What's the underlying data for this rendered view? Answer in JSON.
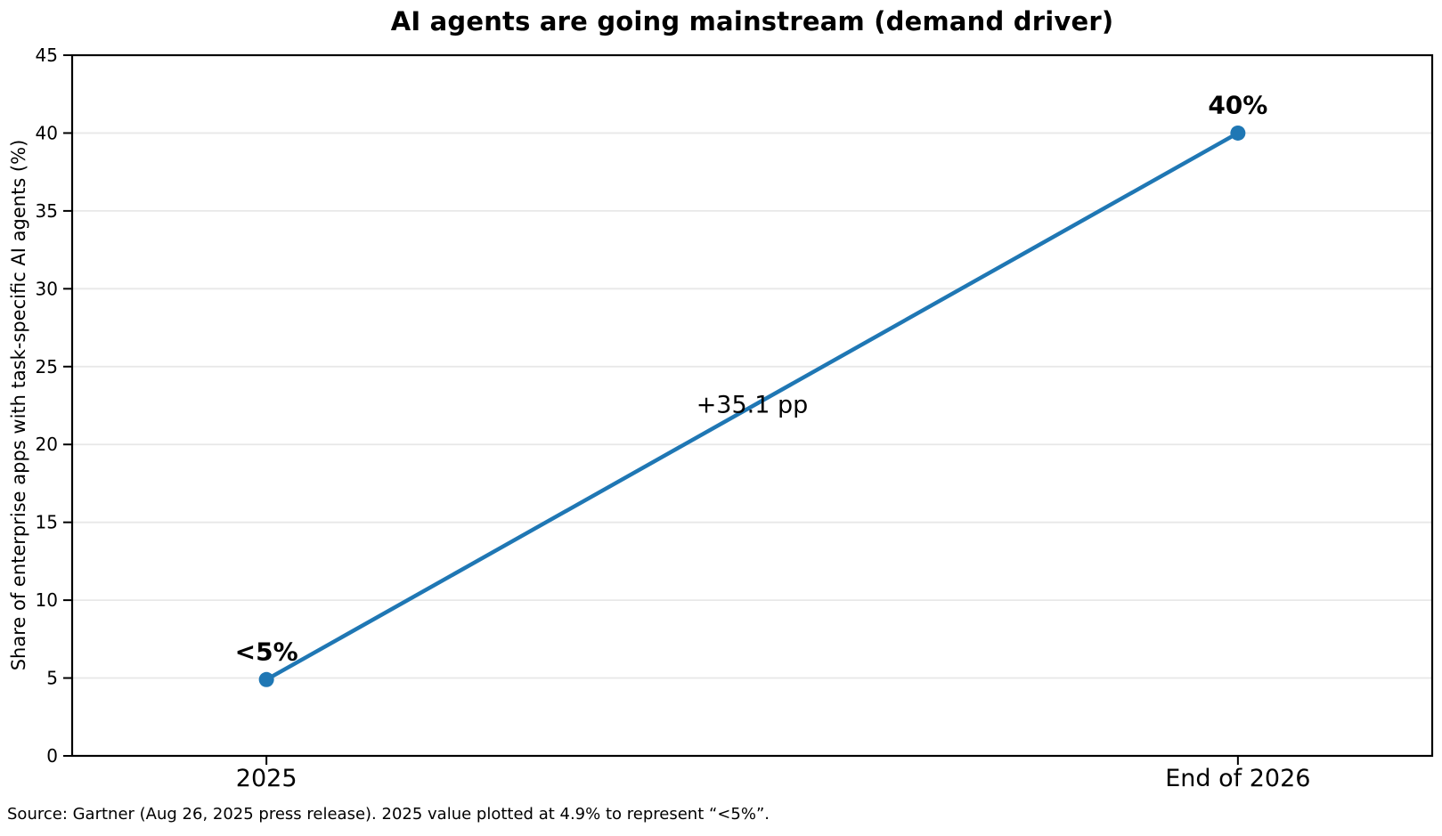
{
  "chart_data": {
    "type": "line",
    "title": "AI agents are going mainstream (demand driver)",
    "ylabel": "Share of enterprise apps with task-specific AI agents (%)",
    "xlabel": "",
    "categories": [
      "2025",
      "End of 2026"
    ],
    "series": [
      {
        "name": "Share of enterprise apps with task-specific AI agents",
        "values": [
          4.9,
          40
        ]
      }
    ],
    "point_labels": [
      "<5%",
      "40%"
    ],
    "midpoint_annotation": "+35.1 pp",
    "ylim": [
      0,
      45
    ],
    "yticks": [
      0,
      5,
      10,
      15,
      20,
      25,
      30,
      35,
      40,
      45
    ],
    "grid": "horizontal-only",
    "legend": "none",
    "colors": {
      "line": "#1f77b4",
      "marker": "#1f77b4",
      "grid": "#e8e8e8",
      "spine": "#000000",
      "text": "#000000"
    },
    "source_note": "Source: Gartner (Aug 26, 2025 press release). 2025 value plotted at 4.9% to represent “<5%”."
  }
}
